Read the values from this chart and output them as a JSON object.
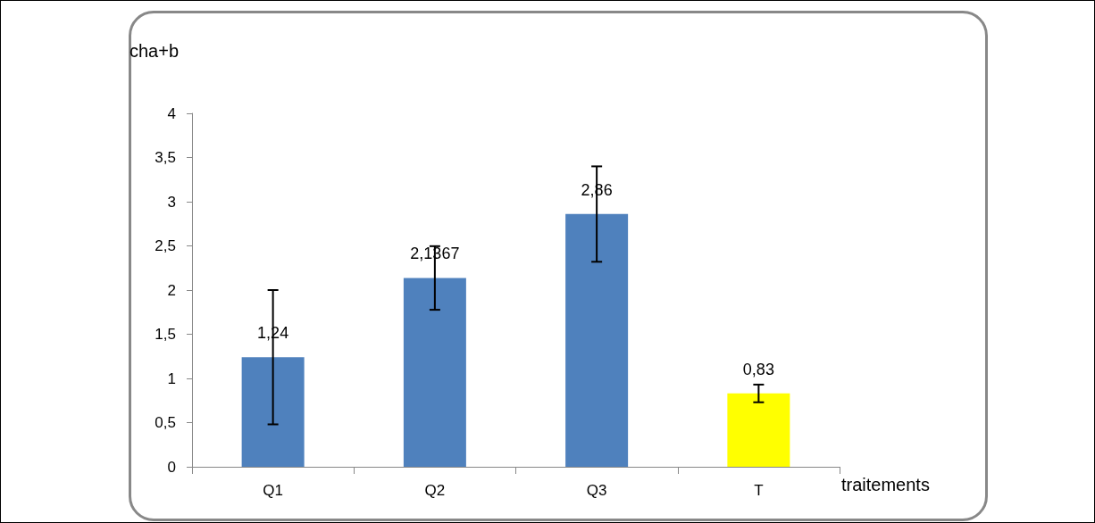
{
  "chart_data": {
    "type": "bar",
    "ylabel": "cha+b",
    "xlabel": "traitements",
    "categories": [
      "Q1",
      "Q2",
      "Q3",
      "T"
    ],
    "values": [
      1.24,
      2.1367,
      2.86,
      0.83
    ],
    "colors": [
      "#4f81bd",
      "#4f81bd",
      "#4f81bd",
      "#ffff00"
    ],
    "value_labels": [
      "1,24",
      "2,1367",
      "2,86",
      "0,83"
    ],
    "errors": [
      0.76,
      0.36,
      0.54,
      0.1
    ],
    "ylim": [
      0,
      4
    ],
    "yticks": [
      0,
      {
        "value": 0.5,
        "label": "0,5"
      },
      1,
      {
        "value": 1.5,
        "label": "1,5"
      },
      2,
      {
        "value": 2.5,
        "label": "2,5"
      },
      3,
      {
        "value": 3.5,
        "label": "3,5"
      },
      4
    ],
    "grid": false
  }
}
